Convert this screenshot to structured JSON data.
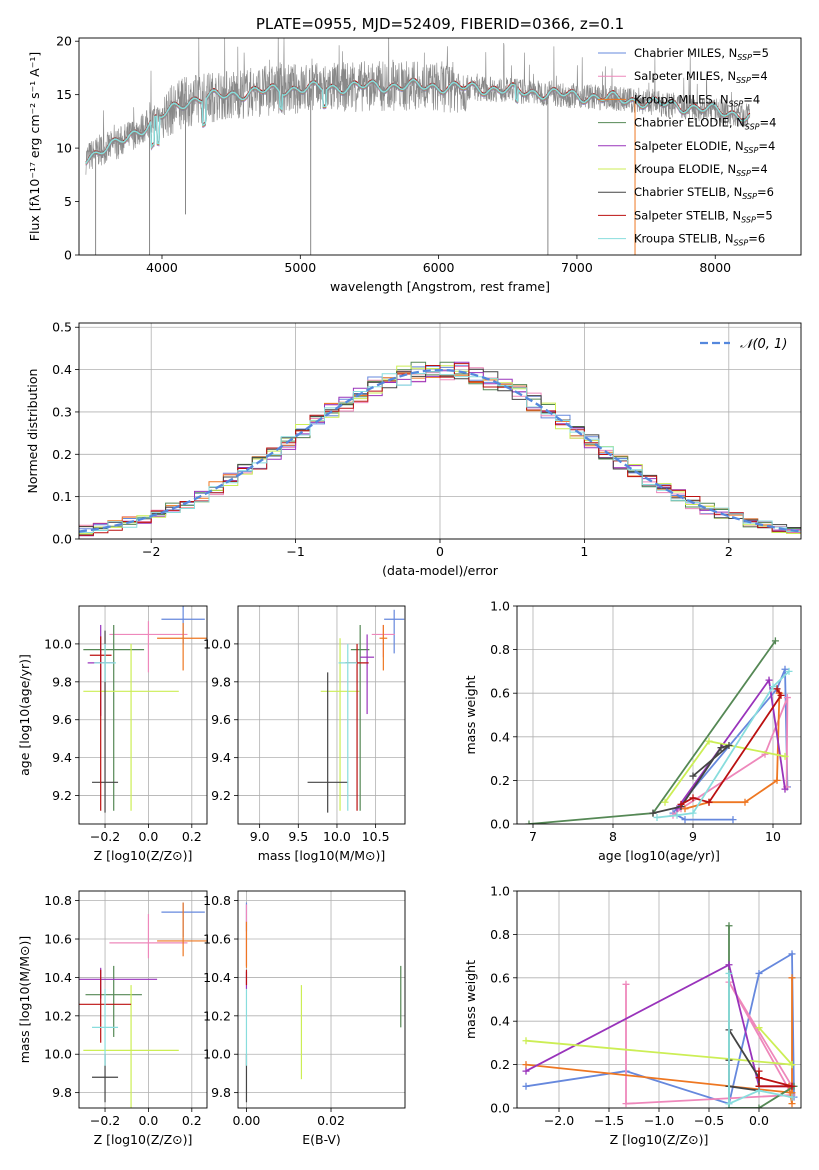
{
  "title": "PLATE=0955, MJD=52409, FIBERID=0366, z=0.1",
  "colors": {
    "Chabrier MILES": "#6688dd",
    "Salpeter MILES": "#ee88bb",
    "Kroupa MILES": "#ee7722",
    "Chabrier ELODIE": "#558855",
    "Salpeter ELODIE": "#9933bb",
    "Kroupa ELODIE": "#ccee55",
    "Chabrier STELIB": "#444444",
    "Salpeter STELIB": "#bb1111",
    "Kroupa STELIB": "#88dddd",
    "data_spectrum": "#888888",
    "gaussian": "#5588dd",
    "grid": "#b0b0b0"
  },
  "chart_data": [
    {
      "id": "spectrum",
      "type": "line",
      "xlabel": "wavelength [Angstrom, rest frame]",
      "ylabel": "Flux [fλ10⁻¹⁷ erg cm⁻² s⁻¹ A⁻¹]",
      "xlim": [
        3400,
        8620
      ],
      "ylim": [
        0,
        20.3
      ],
      "xticks": [
        4000,
        5000,
        6000,
        7000,
        8000
      ],
      "yticks": [
        0,
        5,
        10,
        15,
        20
      ],
      "grid": false,
      "legend_position": "top-right",
      "legend": [
        "Chabrier MILES, N_SSP=5",
        "Salpeter MILES, N_SSP=4",
        "Kroupa MILES, N_SSP=4",
        "Chabrier ELODIE, N_SSP=4",
        "Salpeter ELODIE, N_SSP=4",
        "Kroupa ELODIE, N_SSP=4",
        "Chabrier STELIB, N_SSP=6",
        "Salpeter STELIB, N_SSP=5",
        "Kroupa STELIB, N_SSP=6"
      ],
      "continuum": {
        "x": [
          3450,
          3550,
          3650,
          3750,
          3850,
          3950,
          4050,
          4150,
          4250,
          4350,
          4500,
          4700,
          4900,
          5100,
          5300,
          5500,
          5700,
          5900,
          6100,
          6300,
          6500,
          6700,
          6900,
          7100,
          7300,
          7500,
          7700,
          7900,
          8100,
          8250
        ],
        "y": [
          9.0,
          9.8,
          10.2,
          11.0,
          11.8,
          12.6,
          13.4,
          14.2,
          14.6,
          14.8,
          15.0,
          15.3,
          15.5,
          15.6,
          15.7,
          15.8,
          15.8,
          15.8,
          15.7,
          15.6,
          15.4,
          15.2,
          15.0,
          14.8,
          14.6,
          14.3,
          14.0,
          13.7,
          13.3,
          12.9
        ]
      },
      "drops": [
        [
          3520,
          0
        ],
        [
          3910,
          0
        ],
        [
          4170,
          3.8
        ],
        [
          5075,
          0
        ],
        [
          6790,
          0
        ],
        [
          7420,
          0
        ]
      ]
    },
    {
      "id": "residuals",
      "type": "step-histogram",
      "xlabel": "(data-model)/error",
      "ylabel": "Normed distribution",
      "xlim": [
        -2.5,
        2.5
      ],
      "ylim": [
        0,
        0.51
      ],
      "xticks": [
        -2,
        -1,
        0,
        1,
        2
      ],
      "yticks": [
        0.0,
        0.1,
        0.2,
        0.3,
        0.4,
        0.5
      ],
      "grid": true,
      "legend_position": "top-right",
      "legend": [
        "𝒩(0, 1)"
      ],
      "bin_width": 0.1,
      "curve": "standard normal pdf, dashed"
    },
    {
      "id": "age_vs_Z",
      "type": "errorbar",
      "xlabel": "Z [log10(Z/Z⊙)]",
      "ylabel": "age  [log10(age/yr)]",
      "xlim": [
        -0.32,
        0.27
      ],
      "ylim": [
        9.05,
        10.2
      ],
      "xticks": [
        -0.2,
        0.0,
        0.2
      ],
      "yticks": [
        9.2,
        9.4,
        9.6,
        9.8,
        10.0
      ],
      "grid": true,
      "points": [
        {
          "model": "Chabrier MILES",
          "x": 0.16,
          "xerr": 0.1,
          "y": 10.13,
          "yerr": [
            0.13,
            0.07
          ]
        },
        {
          "model": "Salpeter MILES",
          "x": 0.0,
          "xerr": 0.18,
          "y": 10.05,
          "yerr": [
            0.2,
            0.07
          ]
        },
        {
          "model": "Kroupa MILES",
          "x": 0.16,
          "xerr": 0.12,
          "y": 10.03,
          "yerr": [
            0.17,
            0.08
          ]
        },
        {
          "model": "Chabrier ELODIE",
          "x": -0.16,
          "xerr": 0.14,
          "y": 9.97,
          "yerr": [
            0.85,
            0.13
          ]
        },
        {
          "model": "Salpeter ELODIE",
          "x": -0.22,
          "xerr": 0.06,
          "y": 9.9,
          "yerr": [
            0.28,
            0.2
          ]
        },
        {
          "model": "Kroupa ELODIE",
          "x": -0.08,
          "xerr": 0.22,
          "y": 9.75,
          "yerr": [
            0.63,
            0.25
          ]
        },
        {
          "model": "Chabrier STELIB",
          "x": -0.2,
          "xerr": 0.06,
          "y": 9.27,
          "yerr": [
            0.16,
            0.8
          ]
        },
        {
          "model": "Salpeter STELIB",
          "x": -0.22,
          "xerr": 0.05,
          "y": 9.94,
          "yerr": [
            0.82,
            0.1
          ]
        },
        {
          "model": "Kroupa STELIB",
          "x": -0.2,
          "xerr": 0.05,
          "y": 9.9,
          "yerr": [
            0.1,
            0.1
          ]
        }
      ]
    },
    {
      "id": "age_vs_mass",
      "type": "errorbar",
      "xlabel": "mass [log10(M/M⊙)]",
      "ylabel": "",
      "xlim": [
        8.72,
        10.88
      ],
      "ylim": [
        9.05,
        10.2
      ],
      "xticks": [
        9.0,
        9.5,
        10.0,
        10.5
      ],
      "yticks": [
        9.2,
        9.4,
        9.6,
        9.8,
        10.0
      ],
      "grid": true,
      "points": [
        {
          "model": "Chabrier MILES",
          "x": 10.74,
          "xerr": 0.13,
          "y": 10.13,
          "yerr": [
            0.18,
            0.05
          ]
        },
        {
          "model": "Salpeter MILES",
          "x": 10.6,
          "xerr": 0.15,
          "y": 10.05,
          "yerr": [
            0.12,
            0.05
          ]
        },
        {
          "model": "Kroupa MILES",
          "x": 10.6,
          "xerr": 0.05,
          "y": 10.03,
          "yerr": [
            0.17,
            0.07
          ]
        },
        {
          "model": "Chabrier ELODIE",
          "x": 10.3,
          "xerr": 0.12,
          "y": 9.97,
          "yerr": [
            0.85,
            0.13
          ]
        },
        {
          "model": "Salpeter ELODIE",
          "x": 10.39,
          "xerr": 0.09,
          "y": 9.93,
          "yerr": [
            0.3,
            0.12
          ]
        },
        {
          "model": "Kroupa ELODIE",
          "x": 10.04,
          "xerr": 0.25,
          "y": 9.75,
          "yerr": [
            0.63,
            0.28
          ]
        },
        {
          "model": "Chabrier STELIB",
          "x": 9.88,
          "xerr": 0.26,
          "y": 9.27,
          "yerr": [
            0.16,
            0.58
          ]
        },
        {
          "model": "Salpeter STELIB",
          "x": 10.26,
          "xerr": 0.15,
          "y": 9.9,
          "yerr": [
            0.78,
            0.1
          ]
        },
        {
          "model": "Kroupa STELIB",
          "x": 10.14,
          "xerr": 0.12,
          "y": 9.9,
          "yerr": [
            0.78,
            0.1
          ]
        }
      ]
    },
    {
      "id": "weight_vs_age",
      "type": "line",
      "xlabel": "age  [log10(age/yr)]",
      "ylabel": "mass weight",
      "xlim": [
        6.8,
        10.35
      ],
      "ylim": [
        0,
        1
      ],
      "xticks": [
        7,
        8,
        9,
        10
      ],
      "yticks": [
        0.0,
        0.2,
        0.4,
        0.6,
        0.8,
        1.0
      ],
      "grid": true,
      "series": [
        {
          "model": "Chabrier MILES",
          "x": [
            9.5,
            8.9,
            8.75,
            10.05,
            10.15,
            10.18
          ],
          "y": [
            0.02,
            0.02,
            0.05,
            0.62,
            0.71,
            0.17
          ]
        },
        {
          "model": "Salpeter MILES",
          "x": [
            8.75,
            8.85,
            9.9,
            10.18,
            10.17
          ],
          "y": [
            0.04,
            0.07,
            0.32,
            0.58,
            0.17
          ]
        },
        {
          "model": "Kroupa MILES",
          "x": [
            8.9,
            9.2,
            9.65,
            10.05,
            10.08
          ],
          "y": [
            0.07,
            0.1,
            0.1,
            0.2,
            0.6
          ]
        },
        {
          "model": "Chabrier ELODIE",
          "x": [
            6.95,
            8.5,
            10.03
          ],
          "y": [
            0.0,
            0.05,
            0.84
          ]
        },
        {
          "model": "Salpeter ELODIE",
          "x": [
            8.8,
            9.95,
            10.15
          ],
          "y": [
            0.07,
            0.66,
            0.16
          ]
        },
        {
          "model": "Kroupa ELODIE",
          "x": [
            8.65,
            9.2,
            10.15
          ],
          "y": [
            0.1,
            0.38,
            0.31
          ]
        },
        {
          "model": "Chabrier STELIB",
          "x": [
            8.5,
            8.85,
            9.35,
            9.45,
            9.0
          ],
          "y": [
            0.05,
            0.08,
            0.35,
            0.36,
            0.22
          ]
        },
        {
          "model": "Salpeter STELIB",
          "x": [
            8.85,
            9.0,
            9.2,
            10.1,
            10.05
          ],
          "y": [
            0.09,
            0.12,
            0.1,
            0.59,
            0.62
          ]
        },
        {
          "model": "Kroupa STELIB",
          "x": [
            8.55,
            8.8,
            9.0,
            10.0,
            10.2
          ],
          "y": [
            0.03,
            0.04,
            0.05,
            0.63,
            0.7
          ]
        }
      ]
    },
    {
      "id": "mass_vs_Z",
      "type": "errorbar",
      "xlabel": "Z [log10(Z/Z⊙)]",
      "ylabel": "mass [log10(M/M⊙)]",
      "xlim": [
        -0.32,
        0.27
      ],
      "ylim": [
        9.72,
        10.85
      ],
      "xticks": [
        -0.2,
        0.0,
        0.2
      ],
      "yticks": [
        9.8,
        10.0,
        10.2,
        10.4,
        10.6,
        10.8
      ],
      "grid": true,
      "points": [
        {
          "model": "Chabrier MILES",
          "x": 0.16,
          "xerr": 0.1,
          "y": 10.74,
          "yerr": [
            0.13,
            0.05
          ]
        },
        {
          "model": "Salpeter MILES",
          "x": 0.0,
          "xerr": 0.18,
          "y": 10.58,
          "yerr": [
            0.08,
            0.15
          ]
        },
        {
          "model": "Kroupa MILES",
          "x": 0.16,
          "xerr": 0.12,
          "y": 10.59,
          "yerr": [
            0.08,
            0.2
          ]
        },
        {
          "model": "Chabrier ELODIE",
          "x": -0.16,
          "xerr": 0.13,
          "y": 10.31,
          "yerr": [
            0.22,
            0.15
          ]
        },
        {
          "model": "Salpeter ELODIE",
          "x": -0.22,
          "xerr": 0.26,
          "y": 10.39,
          "yerr": [
            0.1,
            0.06
          ]
        },
        {
          "model": "Kroupa ELODIE",
          "x": -0.08,
          "xerr": 0.22,
          "y": 10.02,
          "yerr": [
            0.3,
            0.34
          ]
        },
        {
          "model": "Chabrier STELIB",
          "x": -0.2,
          "xerr": 0.06,
          "y": 9.88,
          "yerr": [
            0.13,
            0.12
          ]
        },
        {
          "model": "Salpeter STELIB",
          "x": -0.22,
          "xerr": 0.14,
          "y": 10.26,
          "yerr": [
            0.2,
            0.18
          ]
        },
        {
          "model": "Kroupa STELIB",
          "x": -0.2,
          "xerr": 0.06,
          "y": 10.14,
          "yerr": [
            0.2,
            0.2
          ]
        }
      ]
    },
    {
      "id": "mass_vs_EBV",
      "type": "errorbar",
      "xlabel": "E(B-V)",
      "ylabel": "",
      "xlim": [
        -0.002,
        0.0375
      ],
      "ylim": [
        9.72,
        10.85
      ],
      "xticks": [
        0.0,
        0.02
      ],
      "yticks": [
        9.8,
        10.0,
        10.2,
        10.4,
        10.6,
        10.8
      ],
      "grid": true,
      "points": [
        {
          "model": "Chabrier MILES",
          "x": 0.0,
          "y": 10.74,
          "yerr": [
            0.1,
            0.05
          ]
        },
        {
          "model": "Salpeter MILES",
          "x": 0.0,
          "y": 10.58,
          "yerr": [
            0.12,
            0.2
          ]
        },
        {
          "model": "Kroupa MILES",
          "x": 0.0,
          "y": 10.59,
          "yerr": [
            0.14,
            0.1
          ]
        },
        {
          "model": "Chabrier ELODIE",
          "x": 0.0365,
          "y": 10.3,
          "yerr": [
            0.16,
            0.16
          ]
        },
        {
          "model": "Salpeter ELODIE",
          "x": 0.0,
          "y": 10.39,
          "yerr": [
            0.05,
            0.04
          ]
        },
        {
          "model": "Kroupa ELODIE",
          "x": 0.013,
          "y": 10.12,
          "yerr": [
            0.25,
            0.24
          ]
        },
        {
          "model": "Chabrier STELIB",
          "x": 0.0,
          "y": 9.88,
          "yerr": [
            0.13,
            0.12
          ]
        },
        {
          "model": "Salpeter STELIB",
          "x": 0.0,
          "y": 10.4,
          "yerr": [
            0.04,
            0.04
          ]
        },
        {
          "model": "Kroupa STELIB",
          "x": 0.0,
          "y": 10.14,
          "yerr": [
            0.2,
            0.2
          ]
        }
      ]
    },
    {
      "id": "weight_vs_Z",
      "type": "line",
      "xlabel": "Z [log10(Z/Z⊙)]",
      "ylabel": "mass weight",
      "xlim": [
        -2.42,
        0.42
      ],
      "ylim": [
        0,
        1
      ],
      "xticks": [
        -2.0,
        -1.5,
        -1.0,
        -0.5,
        0.0
      ],
      "yticks": [
        0.0,
        0.2,
        0.4,
        0.6,
        0.8,
        1.0
      ],
      "grid": true,
      "series": [
        {
          "model": "Chabrier MILES",
          "x": [
            -2.33,
            -1.33,
            -0.3,
            0.0,
            0.33,
            0.35
          ],
          "y": [
            0.1,
            0.17,
            0.02,
            0.62,
            0.71,
            0.05
          ]
        },
        {
          "model": "Salpeter MILES",
          "x": [
            -1.33,
            -1.33,
            0.33,
            -0.3,
            0.33
          ],
          "y": [
            0.57,
            0.02,
            0.06,
            0.58,
            0.1
          ]
        },
        {
          "model": "Kroupa MILES",
          "x": [
            -2.33,
            0.33,
            0.33,
            0.33,
            0.3
          ],
          "y": [
            0.2,
            0.07,
            0.6,
            0.02,
            0.1
          ]
        },
        {
          "model": "Chabrier ELODIE",
          "x": [
            -0.3,
            -0.3,
            0.0,
            0.35
          ],
          "y": [
            0.84,
            0.0,
            0.0,
            0.1
          ]
        },
        {
          "model": "Salpeter ELODIE",
          "x": [
            -2.33,
            -0.3,
            0.0,
            0.33
          ],
          "y": [
            0.17,
            0.66,
            0.1,
            0.1
          ]
        },
        {
          "model": "Kroupa ELODIE",
          "x": [
            -2.33,
            0.33,
            0.0,
            0.33
          ],
          "y": [
            0.31,
            0.2,
            0.37,
            0.2
          ]
        },
        {
          "model": "Chabrier STELIB",
          "x": [
            -0.3,
            0.0,
            0.0,
            -0.3,
            -0.3
          ],
          "y": [
            0.36,
            0.14,
            0.08,
            0.1,
            0.22
          ]
        },
        {
          "model": "Salpeter STELIB",
          "x": [
            0.0,
            0.0,
            0.33,
            0.0
          ],
          "y": [
            0.17,
            0.14,
            0.1,
            0.1
          ]
        },
        {
          "model": "Kroupa STELIB",
          "x": [
            -0.3,
            -0.3,
            0.0,
            0.33
          ],
          "y": [
            0.62,
            0.02,
            0.08,
            0.05
          ]
        }
      ]
    }
  ]
}
